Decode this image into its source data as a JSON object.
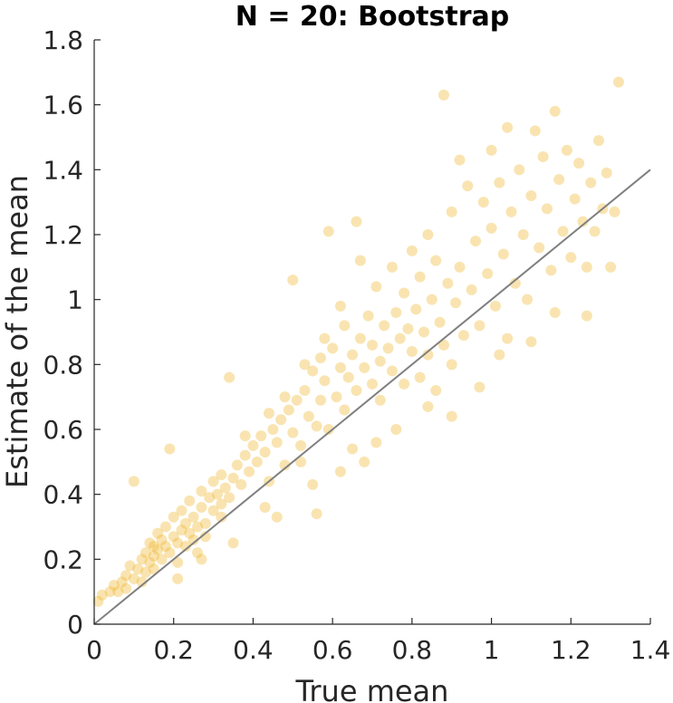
{
  "chart_data": {
    "type": "scatter",
    "title": "N = 20: Bootstrap",
    "xlabel": "True mean",
    "ylabel": "Estimate of the mean",
    "xlim": [
      0,
      1.4
    ],
    "ylim": [
      0,
      1.8
    ],
    "xticks": [
      "0",
      "0.2",
      "0.4",
      "0.6",
      "0.8",
      "1",
      "1.2",
      "1.4"
    ],
    "yticks": [
      "0",
      "0.2",
      "0.4",
      "0.6",
      "0.8",
      "1",
      "1.2",
      "1.4",
      "1.6",
      "1.8"
    ],
    "grid": false,
    "marker_color": "#EDB120",
    "marker_opacity": 0.35,
    "reference_line": {
      "x": [
        0,
        1.4
      ],
      "y": [
        0,
        1.4
      ],
      "color": "#808080"
    },
    "points": [
      [
        0.01,
        0.07
      ],
      [
        0.02,
        0.09
      ],
      [
        0.04,
        0.1
      ],
      [
        0.05,
        0.12
      ],
      [
        0.06,
        0.1
      ],
      [
        0.07,
        0.13
      ],
      [
        0.08,
        0.15
      ],
      [
        0.08,
        0.11
      ],
      [
        0.09,
        0.18
      ],
      [
        0.1,
        0.44
      ],
      [
        0.1,
        0.14
      ],
      [
        0.11,
        0.17
      ],
      [
        0.12,
        0.2
      ],
      [
        0.12,
        0.13
      ],
      [
        0.13,
        0.22
      ],
      [
        0.13,
        0.16
      ],
      [
        0.14,
        0.19
      ],
      [
        0.14,
        0.25
      ],
      [
        0.15,
        0.21
      ],
      [
        0.15,
        0.17
      ],
      [
        0.16,
        0.23
      ],
      [
        0.16,
        0.28
      ],
      [
        0.17,
        0.2
      ],
      [
        0.17,
        0.26
      ],
      [
        0.18,
        0.24
      ],
      [
        0.18,
        0.3
      ],
      [
        0.19,
        0.54
      ],
      [
        0.19,
        0.22
      ],
      [
        0.2,
        0.27
      ],
      [
        0.2,
        0.33
      ],
      [
        0.21,
        0.25
      ],
      [
        0.21,
        0.19
      ],
      [
        0.22,
        0.29
      ],
      [
        0.22,
        0.35
      ],
      [
        0.23,
        0.24
      ],
      [
        0.23,
        0.31
      ],
      [
        0.24,
        0.28
      ],
      [
        0.24,
        0.38
      ],
      [
        0.25,
        0.26
      ],
      [
        0.25,
        0.33
      ],
      [
        0.26,
        0.3
      ],
      [
        0.26,
        0.22
      ],
      [
        0.27,
        0.36
      ],
      [
        0.27,
        0.41
      ],
      [
        0.28,
        0.31
      ],
      [
        0.28,
        0.27
      ],
      [
        0.29,
        0.39
      ],
      [
        0.3,
        0.35
      ],
      [
        0.3,
        0.44
      ],
      [
        0.31,
        0.4
      ],
      [
        0.32,
        0.37
      ],
      [
        0.32,
        0.46
      ],
      [
        0.33,
        0.42
      ],
      [
        0.34,
        0.76
      ],
      [
        0.34,
        0.39
      ],
      [
        0.35,
        0.45
      ],
      [
        0.36,
        0.49
      ],
      [
        0.37,
        0.43
      ],
      [
        0.38,
        0.52
      ],
      [
        0.39,
        0.47
      ],
      [
        0.4,
        0.55
      ],
      [
        0.41,
        0.5
      ],
      [
        0.42,
        0.58
      ],
      [
        0.43,
        0.53
      ],
      [
        0.44,
        0.44
      ],
      [
        0.45,
        0.6
      ],
      [
        0.46,
        0.56
      ],
      [
        0.47,
        0.63
      ],
      [
        0.48,
        0.49
      ],
      [
        0.49,
        0.66
      ],
      [
        0.5,
        0.59
      ],
      [
        0.5,
        1.06
      ],
      [
        0.51,
        0.69
      ],
      [
        0.52,
        0.55
      ],
      [
        0.53,
        0.72
      ],
      [
        0.54,
        0.64
      ],
      [
        0.55,
        0.78
      ],
      [
        0.56,
        0.61
      ],
      [
        0.57,
        0.82
      ],
      [
        0.57,
        0.69
      ],
      [
        0.58,
        0.75
      ],
      [
        0.59,
        0.6
      ],
      [
        0.59,
        1.21
      ],
      [
        0.6,
        0.85
      ],
      [
        0.61,
        0.7
      ],
      [
        0.62,
        0.79
      ],
      [
        0.63,
        0.66
      ],
      [
        0.63,
        0.92
      ],
      [
        0.64,
        0.76
      ],
      [
        0.65,
        0.83
      ],
      [
        0.66,
        0.72
      ],
      [
        0.66,
        1.24
      ],
      [
        0.67,
        0.88
      ],
      [
        0.68,
        0.79
      ],
      [
        0.69,
        0.95
      ],
      [
        0.7,
        0.74
      ],
      [
        0.7,
        0.86
      ],
      [
        0.71,
        1.04
      ],
      [
        0.72,
        0.81
      ],
      [
        0.72,
        0.69
      ],
      [
        0.73,
        0.92
      ],
      [
        0.74,
        0.85
      ],
      [
        0.75,
        1.1
      ],
      [
        0.75,
        0.78
      ],
      [
        0.76,
        0.96
      ],
      [
        0.77,
        0.88
      ],
      [
        0.78,
        1.02
      ],
      [
        0.78,
        0.74
      ],
      [
        0.79,
        0.91
      ],
      [
        0.8,
        1.15
      ],
      [
        0.8,
        0.84
      ],
      [
        0.81,
        0.97
      ],
      [
        0.82,
        0.76
      ],
      [
        0.82,
        1.07
      ],
      [
        0.83,
        0.9
      ],
      [
        0.84,
        1.2
      ],
      [
        0.84,
        0.83
      ],
      [
        0.85,
        1.0
      ],
      [
        0.86,
        0.72
      ],
      [
        0.86,
        1.12
      ],
      [
        0.87,
        0.93
      ],
      [
        0.88,
        1.63
      ],
      [
        0.88,
        0.86
      ],
      [
        0.89,
        1.05
      ],
      [
        0.9,
        1.27
      ],
      [
        0.9,
        0.8
      ],
      [
        0.91,
        0.99
      ],
      [
        0.92,
        1.43
      ],
      [
        0.92,
        1.1
      ],
      [
        0.93,
        0.89
      ],
      [
        0.94,
        1.35
      ],
      [
        0.95,
        1.03
      ],
      [
        0.96,
        1.18
      ],
      [
        0.97,
        0.92
      ],
      [
        0.98,
        1.3
      ],
      [
        0.99,
        1.08
      ],
      [
        1.0,
        1.46
      ],
      [
        1.0,
        1.22
      ],
      [
        1.01,
        0.98
      ],
      [
        1.02,
        1.36
      ],
      [
        1.03,
        1.14
      ],
      [
        1.04,
        1.53
      ],
      [
        1.05,
        1.27
      ],
      [
        1.06,
        1.05
      ],
      [
        1.07,
        1.4
      ],
      [
        1.08,
        1.2
      ],
      [
        1.09,
        1.0
      ],
      [
        1.1,
        1.32
      ],
      [
        1.11,
        1.52
      ],
      [
        1.12,
        1.16
      ],
      [
        1.13,
        1.44
      ],
      [
        1.14,
        1.28
      ],
      [
        1.15,
        1.09
      ],
      [
        1.16,
        1.58
      ],
      [
        1.17,
        1.37
      ],
      [
        1.18,
        1.21
      ],
      [
        1.19,
        1.46
      ],
      [
        1.2,
        1.13
      ],
      [
        1.21,
        1.31
      ],
      [
        1.22,
        1.42
      ],
      [
        1.23,
        1.24
      ],
      [
        1.24,
        1.1
      ],
      [
        1.25,
        1.36
      ],
      [
        1.26,
        1.21
      ],
      [
        1.27,
        1.49
      ],
      [
        1.28,
        1.28
      ],
      [
        1.29,
        1.39
      ],
      [
        1.3,
        1.1
      ],
      [
        1.31,
        1.27
      ],
      [
        1.32,
        1.67
      ],
      [
        1.16,
        0.96
      ],
      [
        1.04,
        0.88
      ],
      [
        0.97,
        0.73
      ],
      [
        0.65,
        0.54
      ],
      [
        0.52,
        0.5
      ],
      [
        0.43,
        0.36
      ],
      [
        0.32,
        0.33
      ],
      [
        0.15,
        0.24
      ],
      [
        0.27,
        0.2
      ],
      [
        0.55,
        0.43
      ],
      [
        0.62,
        0.47
      ],
      [
        0.71,
        0.56
      ],
      [
        0.76,
        0.6
      ],
      [
        0.84,
        0.67
      ],
      [
        0.9,
        0.64
      ],
      [
        1.02,
        0.83
      ],
      [
        1.1,
        0.87
      ],
      [
        1.24,
        0.95
      ],
      [
        0.35,
        0.25
      ],
      [
        0.21,
        0.14
      ],
      [
        0.38,
        0.58
      ],
      [
        0.44,
        0.65
      ],
      [
        0.48,
        0.7
      ],
      [
        0.53,
        0.8
      ],
      [
        0.58,
        0.88
      ],
      [
        0.62,
        0.98
      ],
      [
        0.67,
        1.12
      ],
      [
        0.46,
        0.33
      ],
      [
        0.56,
        0.34
      ],
      [
        0.68,
        0.5
      ]
    ]
  }
}
